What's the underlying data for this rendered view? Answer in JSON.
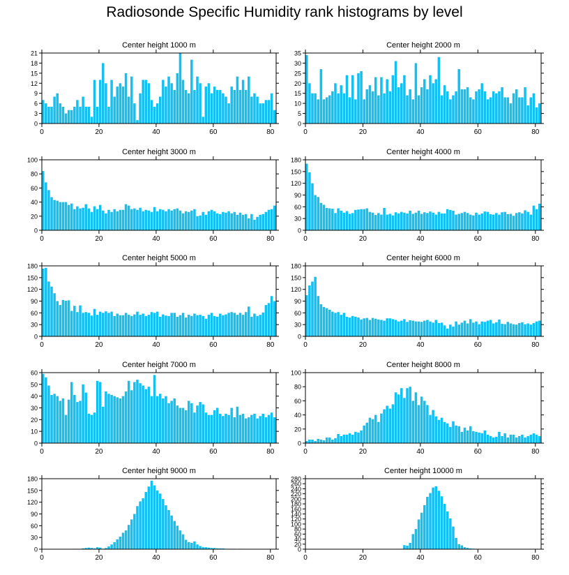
{
  "figure": {
    "title": "Radiosonde Specific Humidity rank histograms by level"
  },
  "chart_data": [
    {
      "type": "bar",
      "title": "Center height 1000 m",
      "xlim": [
        0,
        82
      ],
      "xticks": [
        0,
        20,
        40,
        60,
        80
      ],
      "ylim": [
        0,
        21
      ],
      "yticks": [
        0,
        3,
        6,
        9,
        12,
        15,
        18,
        21
      ],
      "values": [
        7,
        6,
        5,
        5,
        8,
        9,
        6,
        5,
        3,
        4,
        4,
        5,
        7,
        5,
        8,
        5,
        5,
        2,
        13,
        5,
        13,
        18,
        12,
        5,
        13,
        8,
        11,
        12,
        11,
        15,
        8,
        14,
        6,
        1,
        9,
        13,
        13,
        12,
        7,
        5,
        6,
        8,
        13,
        11,
        14,
        12,
        10,
        15,
        21,
        13,
        10,
        9,
        19,
        10,
        14,
        12,
        2,
        11,
        12,
        9,
        11,
        10,
        10,
        9,
        8,
        6,
        11,
        10,
        14,
        10,
        13,
        10,
        14,
        8,
        9,
        8,
        6,
        6,
        7,
        7,
        9,
        4
      ]
    },
    {
      "type": "bar",
      "title": "Center height 2000 m",
      "xlim": [
        0,
        82
      ],
      "xticks": [
        0,
        20,
        40,
        60,
        80
      ],
      "ylim": [
        0,
        35
      ],
      "yticks": [
        0,
        5,
        10,
        15,
        20,
        25,
        30,
        35
      ],
      "values": [
        34,
        20,
        15,
        15,
        12,
        27,
        12,
        13,
        14,
        16,
        20,
        15,
        19,
        15,
        24,
        13,
        24,
        12,
        25,
        26,
        12,
        17,
        19,
        16,
        23,
        14,
        23,
        15,
        22,
        16,
        24,
        31,
        18,
        20,
        24,
        14,
        17,
        12,
        30,
        14,
        18,
        22,
        17,
        24,
        20,
        22,
        33,
        14,
        19,
        16,
        12,
        14,
        16,
        27,
        17,
        17,
        18,
        13,
        12,
        16,
        17,
        20,
        16,
        12,
        13,
        16,
        15,
        16,
        18,
        13,
        13,
        10,
        15,
        17,
        13,
        13,
        18,
        9,
        13,
        15,
        8,
        10
      ]
    },
    {
      "type": "bar",
      "title": "Center height 3000 m",
      "xlim": [
        0,
        82
      ],
      "xticks": [
        0,
        20,
        40,
        60,
        80
      ],
      "ylim": [
        0,
        100
      ],
      "yticks": [
        0,
        20,
        40,
        60,
        80,
        100
      ],
      "values": [
        84,
        68,
        57,
        47,
        43,
        42,
        40,
        40,
        40,
        36,
        38,
        30,
        34,
        31,
        32,
        37,
        31,
        26,
        34,
        30,
        36,
        28,
        24,
        29,
        26,
        30,
        27,
        29,
        29,
        37,
        35,
        30,
        31,
        29,
        32,
        27,
        29,
        28,
        26,
        33,
        27,
        30,
        29,
        27,
        30,
        28,
        30,
        31,
        28,
        24,
        27,
        26,
        28,
        30,
        20,
        21,
        26,
        22,
        27,
        29,
        27,
        24,
        23,
        26,
        25,
        27,
        24,
        26,
        22,
        25,
        22,
        23,
        17,
        23,
        15,
        19,
        22,
        23,
        26,
        29,
        30,
        35
      ]
    },
    {
      "type": "bar",
      "title": "Center height 4000 m",
      "xlim": [
        0,
        82
      ],
      "xticks": [
        0,
        20,
        40,
        60,
        80
      ],
      "ylim": [
        0,
        180
      ],
      "yticks": [
        0,
        30,
        60,
        90,
        120,
        150,
        180
      ],
      "values": [
        170,
        148,
        120,
        90,
        85,
        70,
        65,
        57,
        56,
        55,
        44,
        56,
        50,
        45,
        49,
        42,
        44,
        52,
        53,
        54,
        54,
        56,
        47,
        45,
        39,
        44,
        40,
        57,
        40,
        42,
        38,
        46,
        43,
        47,
        45,
        43,
        50,
        42,
        45,
        50,
        42,
        46,
        44,
        48,
        45,
        40,
        47,
        43,
        43,
        54,
        52,
        50,
        40,
        42,
        44,
        47,
        44,
        40,
        38,
        45,
        40,
        43,
        48,
        47,
        41,
        40,
        44,
        40,
        46,
        47,
        41,
        42,
        37,
        44,
        46,
        43,
        51,
        47,
        40,
        63,
        54,
        68
      ]
    },
    {
      "type": "bar",
      "title": "Center height 5000 m",
      "xlim": [
        0,
        82
      ],
      "xticks": [
        0,
        20,
        40,
        60,
        80
      ],
      "ylim": [
        0,
        180
      ],
      "yticks": [
        0,
        30,
        60,
        90,
        120,
        150,
        180
      ],
      "values": [
        173,
        175,
        140,
        127,
        110,
        90,
        80,
        93,
        91,
        92,
        65,
        78,
        62,
        79,
        60,
        62,
        60,
        53,
        70,
        55,
        63,
        60,
        64,
        60,
        63,
        52,
        58,
        54,
        54,
        60,
        55,
        52,
        56,
        63,
        55,
        58,
        52,
        55,
        62,
        60,
        63,
        50,
        56,
        53,
        52,
        60,
        60,
        50,
        54,
        60,
        48,
        55,
        52,
        58,
        54,
        55,
        52,
        45,
        55,
        60,
        52,
        50,
        58,
        54,
        56,
        60,
        62,
        60,
        55,
        60,
        55,
        62,
        76,
        50,
        58,
        52,
        55,
        61,
        80,
        85,
        103,
        90
      ]
    },
    {
      "type": "bar",
      "title": "Center height 6000 m",
      "xlim": [
        0,
        82
      ],
      "xticks": [
        0,
        20,
        40,
        60,
        80
      ],
      "ylim": [
        0,
        180
      ],
      "yticks": [
        0,
        30,
        60,
        90,
        120,
        150,
        180
      ],
      "values": [
        105,
        130,
        140,
        152,
        103,
        82,
        75,
        72,
        68,
        63,
        60,
        62,
        55,
        60,
        50,
        48,
        52,
        50,
        48,
        43,
        46,
        47,
        42,
        47,
        45,
        43,
        42,
        40,
        46,
        46,
        44,
        42,
        38,
        40,
        44,
        37,
        41,
        40,
        38,
        38,
        37,
        40,
        42,
        38,
        35,
        42,
        34,
        35,
        28,
        20,
        30,
        25,
        38,
        30,
        35,
        40,
        33,
        44,
        35,
        38,
        31,
        38,
        37,
        40,
        42,
        33,
        36,
        43,
        32,
        31,
        37,
        33,
        31,
        30,
        34,
        36,
        31,
        33,
        30,
        34,
        38,
        40
      ]
    },
    {
      "type": "bar",
      "title": "Center height 7000 m",
      "xlim": [
        0,
        82
      ],
      "xticks": [
        0,
        20,
        40,
        60,
        80
      ],
      "ylim": [
        0,
        60
      ],
      "yticks": [
        0,
        10,
        20,
        30,
        40,
        50,
        60
      ],
      "values": [
        59,
        56,
        49,
        41,
        42,
        40,
        36,
        38,
        24,
        37,
        52,
        41,
        35,
        36,
        50,
        43,
        25,
        24,
        26,
        53,
        52,
        31,
        44,
        42,
        41,
        40,
        39,
        38,
        40,
        44,
        53,
        45,
        52,
        54,
        51,
        49,
        46,
        48,
        40,
        58,
        40,
        42,
        38,
        40,
        34,
        36,
        38,
        32,
        30,
        30,
        28,
        36,
        34,
        26,
        32,
        35,
        33,
        26,
        24,
        24,
        28,
        30,
        25,
        23,
        25,
        24,
        30,
        22,
        31,
        24,
        25,
        21,
        22,
        24,
        25,
        21,
        23,
        25,
        22,
        24,
        26,
        22
      ]
    },
    {
      "type": "bar",
      "title": "Center height 8000 m",
      "xlim": [
        0,
        82
      ],
      "xticks": [
        0,
        20,
        40,
        60,
        80
      ],
      "ylim": [
        0,
        100
      ],
      "yticks": [
        0,
        20,
        40,
        60,
        80,
        100
      ],
      "values": [
        3,
        5,
        5,
        3,
        6,
        5,
        4,
        8,
        8,
        5,
        7,
        13,
        10,
        12,
        12,
        14,
        12,
        16,
        15,
        18,
        25,
        29,
        36,
        34,
        40,
        30,
        42,
        48,
        53,
        49,
        55,
        72,
        69,
        78,
        64,
        78,
        80,
        60,
        72,
        54,
        66,
        60,
        54,
        40,
        47,
        38,
        33,
        36,
        30,
        28,
        23,
        31,
        25,
        24,
        16,
        22,
        18,
        24,
        17,
        16,
        15,
        14,
        18,
        12,
        10,
        8,
        9,
        16,
        10,
        14,
        8,
        12,
        12,
        8,
        10,
        12,
        8,
        10,
        12,
        14,
        12,
        10
      ]
    },
    {
      "type": "bar",
      "title": "Center height 9000 m",
      "xlim": [
        0,
        82
      ],
      "xticks": [
        0,
        20,
        40,
        60,
        80
      ],
      "ylim": [
        0,
        180
      ],
      "yticks": [
        0,
        30,
        60,
        90,
        120,
        150,
        180
      ],
      "values": [
        0,
        0,
        0,
        0,
        0,
        0,
        0,
        0,
        0,
        0,
        0,
        1,
        1,
        0,
        2,
        3,
        4,
        3,
        2,
        5,
        4,
        1,
        3,
        7,
        12,
        18,
        25,
        32,
        42,
        48,
        62,
        76,
        90,
        110,
        122,
        130,
        146,
        160,
        175,
        163,
        150,
        142,
        128,
        112,
        100,
        86,
        72,
        60,
        48,
        38,
        24,
        18,
        16,
        20,
        12,
        8,
        5,
        5,
        4,
        3,
        3,
        2,
        2,
        2,
        1,
        1,
        1,
        1,
        0,
        1,
        0,
        0,
        0,
        0,
        0,
        0,
        0,
        0,
        0,
        0,
        0,
        0
      ]
    },
    {
      "type": "bar",
      "title": "Center height 10000 m",
      "xlim": [
        0,
        82
      ],
      "xticks": [
        0,
        20,
        40,
        60,
        80
      ],
      "ylim": [
        0,
        280
      ],
      "yticks": [
        0,
        20,
        40,
        60,
        80,
        100,
        120,
        140,
        160,
        180,
        200,
        220,
        240,
        260,
        280
      ],
      "values": [
        0,
        0,
        0,
        0,
        0,
        0,
        0,
        0,
        0,
        0,
        0,
        0,
        0,
        0,
        0,
        0,
        0,
        0,
        0,
        0,
        0,
        0,
        0,
        0,
        0,
        0,
        0,
        0,
        0,
        0,
        0,
        0,
        0,
        0,
        16,
        14,
        25,
        60,
        80,
        118,
        145,
        175,
        208,
        223,
        245,
        250,
        232,
        210,
        180,
        150,
        122,
        90,
        45,
        20,
        15,
        8,
        5,
        3,
        2,
        1,
        1,
        0,
        0,
        0,
        0,
        0,
        0,
        0,
        0,
        0,
        0,
        0,
        0,
        0,
        0,
        0,
        0,
        0,
        0,
        0,
        0,
        0
      ]
    }
  ]
}
